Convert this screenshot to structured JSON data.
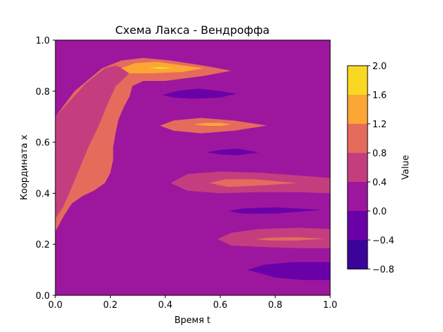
{
  "chart_data": {
    "type": "contour",
    "title": "Схема Лакса - Вендроффа",
    "xlabel": "Время t",
    "ylabel": "Координата x",
    "xlim": [
      0.0,
      1.0
    ],
    "ylim": [
      0.0,
      1.0
    ],
    "xticks": [
      "0.0",
      "0.2",
      "0.4",
      "0.6",
      "0.8",
      "1.0"
    ],
    "yticks": [
      "0.0",
      "0.2",
      "0.4",
      "0.6",
      "0.8",
      "1.0"
    ],
    "colormap": "plasma",
    "levels": [
      -0.8,
      -0.4,
      0.0,
      0.4,
      0.8,
      1.2,
      1.6,
      2.0
    ],
    "level_colors": [
      "#3a049a",
      "#6a00a8",
      "#9c179e",
      "#c43e7f",
      "#e56b5d",
      "#fca636",
      "#f9d824"
    ],
    "colorbar": {
      "label": "Value",
      "ticks": [
        "−0.8",
        "−0.4",
        "0.0",
        "0.4",
        "0.8",
        "1.2",
        "1.6",
        "2.0"
      ]
    },
    "regions": [
      {
        "level_index": 4,
        "polygon": [
          [
            0.0,
            0.7
          ],
          [
            0.07,
            0.8
          ],
          [
            0.17,
            0.89
          ],
          [
            0.24,
            0.92
          ],
          [
            0.32,
            0.93
          ],
          [
            0.42,
            0.92
          ],
          [
            0.54,
            0.9
          ],
          [
            0.64,
            0.88
          ],
          [
            0.54,
            0.86
          ],
          [
            0.4,
            0.84
          ],
          [
            0.32,
            0.84
          ],
          [
            0.28,
            0.82
          ],
          [
            0.27,
            0.78
          ],
          [
            0.25,
            0.74
          ],
          [
            0.23,
            0.69
          ],
          [
            0.22,
            0.64
          ],
          [
            0.21,
            0.58
          ],
          [
            0.21,
            0.53
          ],
          [
            0.2,
            0.48
          ],
          [
            0.18,
            0.44
          ],
          [
            0.14,
            0.41
          ],
          [
            0.1,
            0.39
          ],
          [
            0.06,
            0.36
          ],
          [
            0.03,
            0.31
          ],
          [
            0.0,
            0.25
          ]
        ]
      },
      {
        "level_index": 3,
        "polygon": [
          [
            0.0,
            0.7
          ],
          [
            0.0,
            0.3
          ],
          [
            0.03,
            0.35
          ],
          [
            0.07,
            0.45
          ],
          [
            0.12,
            0.58
          ],
          [
            0.16,
            0.67
          ],
          [
            0.19,
            0.75
          ],
          [
            0.22,
            0.82
          ],
          [
            0.26,
            0.86
          ],
          [
            0.27,
            0.88
          ],
          [
            0.22,
            0.9
          ],
          [
            0.18,
            0.89
          ],
          [
            0.11,
            0.83
          ],
          [
            0.06,
            0.77
          ]
        ]
      },
      {
        "level_index": 5,
        "polygon": [
          [
            0.24,
            0.89
          ],
          [
            0.29,
            0.91
          ],
          [
            0.37,
            0.915
          ],
          [
            0.47,
            0.9
          ],
          [
            0.54,
            0.89
          ],
          [
            0.46,
            0.875
          ],
          [
            0.35,
            0.87
          ],
          [
            0.27,
            0.87
          ]
        ]
      },
      {
        "level_index": 6,
        "polygon": [
          [
            0.34,
            0.892
          ],
          [
            0.38,
            0.895
          ],
          [
            0.43,
            0.891
          ],
          [
            0.38,
            0.887
          ]
        ]
      },
      {
        "level_index": 2,
        "polygon": [
          [
            0.33,
            0.8
          ],
          [
            0.38,
            0.82
          ],
          [
            0.48,
            0.83
          ],
          [
            0.6,
            0.825
          ],
          [
            0.72,
            0.81
          ],
          [
            0.83,
            0.78
          ],
          [
            0.72,
            0.765
          ],
          [
            0.58,
            0.755
          ],
          [
            0.46,
            0.755
          ],
          [
            0.38,
            0.76
          ],
          [
            0.35,
            0.77
          ]
        ]
      },
      {
        "level_index": 1,
        "polygon": [
          [
            0.39,
            0.785
          ],
          [
            0.44,
            0.8
          ],
          [
            0.52,
            0.81
          ],
          [
            0.6,
            0.8
          ],
          [
            0.66,
            0.79
          ],
          [
            0.6,
            0.775
          ],
          [
            0.5,
            0.77
          ],
          [
            0.43,
            0.775
          ]
        ]
      },
      {
        "level_index": 4,
        "polygon": [
          [
            0.38,
            0.665
          ],
          [
            0.43,
            0.685
          ],
          [
            0.53,
            0.695
          ],
          [
            0.65,
            0.685
          ],
          [
            0.77,
            0.665
          ],
          [
            0.65,
            0.645
          ],
          [
            0.53,
            0.635
          ],
          [
            0.43,
            0.645
          ]
        ]
      },
      {
        "level_index": 5,
        "polygon": [
          [
            0.5,
            0.67
          ],
          [
            0.55,
            0.676
          ],
          [
            0.6,
            0.676
          ],
          [
            0.64,
            0.67
          ],
          [
            0.6,
            0.664
          ],
          [
            0.55,
            0.664
          ]
        ]
      },
      {
        "level_index": 2,
        "polygon": [
          [
            0.46,
            0.56
          ],
          [
            0.52,
            0.585
          ],
          [
            0.62,
            0.595
          ],
          [
            0.75,
            0.59
          ],
          [
            0.88,
            0.575
          ],
          [
            1.0,
            0.565
          ],
          [
            1.0,
            0.52
          ],
          [
            0.88,
            0.52
          ],
          [
            0.75,
            0.515
          ],
          [
            0.62,
            0.52
          ],
          [
            0.52,
            0.535
          ]
        ]
      },
      {
        "level_index": 1,
        "polygon": [
          [
            0.55,
            0.56
          ],
          [
            0.6,
            0.57
          ],
          [
            0.66,
            0.575
          ],
          [
            0.74,
            0.56
          ],
          [
            0.66,
            0.548
          ],
          [
            0.6,
            0.552
          ]
        ]
      },
      {
        "level_index": 3,
        "polygon": [
          [
            0.42,
            0.44
          ],
          [
            0.48,
            0.475
          ],
          [
            0.6,
            0.485
          ],
          [
            0.75,
            0.48
          ],
          [
            0.88,
            0.47
          ],
          [
            1.0,
            0.46
          ],
          [
            1.0,
            0.4
          ],
          [
            0.88,
            0.405
          ],
          [
            0.75,
            0.405
          ],
          [
            0.6,
            0.4
          ],
          [
            0.48,
            0.41
          ]
        ]
      },
      {
        "level_index": 4,
        "polygon": [
          [
            0.56,
            0.44
          ],
          [
            0.62,
            0.455
          ],
          [
            0.72,
            0.455
          ],
          [
            0.88,
            0.44
          ],
          [
            0.74,
            0.43
          ],
          [
            0.63,
            0.425
          ]
        ]
      },
      {
        "level_index": 2,
        "polygon": [
          [
            0.5,
            0.335
          ],
          [
            0.56,
            0.355
          ],
          [
            0.66,
            0.36
          ],
          [
            0.8,
            0.36
          ],
          [
            0.92,
            0.355
          ],
          [
            1.0,
            0.35
          ],
          [
            1.0,
            0.3
          ],
          [
            0.92,
            0.305
          ],
          [
            0.8,
            0.3
          ],
          [
            0.66,
            0.3
          ],
          [
            0.56,
            0.31
          ]
        ]
      },
      {
        "level_index": 1,
        "polygon": [
          [
            0.63,
            0.33
          ],
          [
            0.68,
            0.34
          ],
          [
            0.8,
            0.345
          ],
          [
            0.97,
            0.335
          ],
          [
            0.8,
            0.32
          ],
          [
            0.68,
            0.32
          ]
        ]
      },
      {
        "level_index": 3,
        "polygon": [
          [
            0.59,
            0.22
          ],
          [
            0.64,
            0.245
          ],
          [
            0.74,
            0.26
          ],
          [
            0.88,
            0.265
          ],
          [
            1.0,
            0.26
          ],
          [
            1.0,
            0.185
          ],
          [
            0.88,
            0.185
          ],
          [
            0.74,
            0.19
          ],
          [
            0.64,
            0.195
          ]
        ]
      },
      {
        "level_index": 4,
        "polygon": [
          [
            0.73,
            0.22
          ],
          [
            0.78,
            0.226
          ],
          [
            0.88,
            0.228
          ],
          [
            0.98,
            0.222
          ],
          [
            0.88,
            0.215
          ],
          [
            0.78,
            0.215
          ]
        ]
      },
      {
        "level_index": 2,
        "polygon": [
          [
            0.47,
            0.0
          ],
          [
            0.47,
            0.12
          ],
          [
            0.52,
            0.13
          ],
          [
            0.6,
            0.15
          ],
          [
            0.72,
            0.16
          ],
          [
            0.84,
            0.16
          ],
          [
            1.0,
            0.15
          ],
          [
            1.0,
            0.0
          ]
        ]
      },
      {
        "level_index": 1,
        "polygon": [
          [
            0.7,
            0.1
          ],
          [
            0.76,
            0.12
          ],
          [
            0.86,
            0.13
          ],
          [
            1.0,
            0.13
          ],
          [
            1.0,
            0.06
          ],
          [
            0.9,
            0.06
          ],
          [
            0.8,
            0.07
          ]
        ]
      }
    ]
  }
}
